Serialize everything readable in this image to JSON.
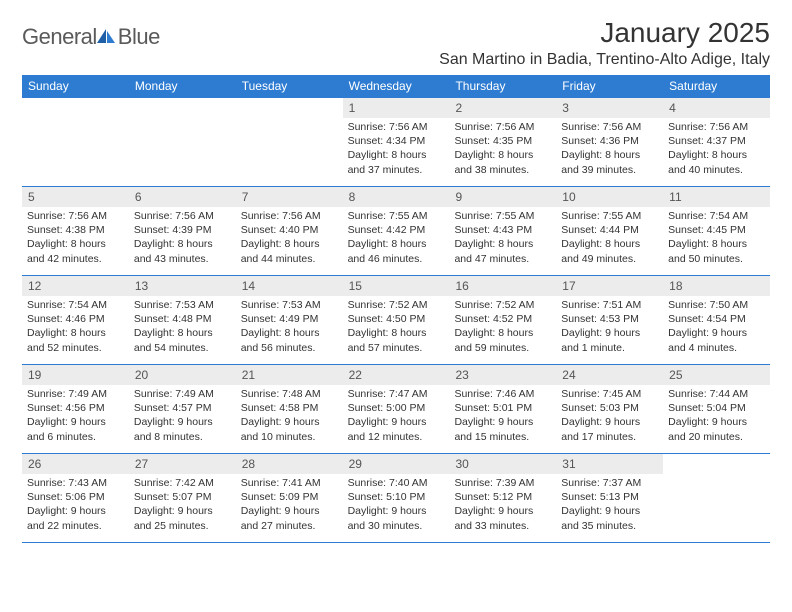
{
  "brand": {
    "name_part1": "General",
    "name_part2": "Blue"
  },
  "title": "January 2025",
  "location": "San Martino in Badia, Trentino-Alto Adige, Italy",
  "colors": {
    "header_bg": "#2e7cd1",
    "header_text": "#ffffff",
    "daynum_bg": "#ececec",
    "daynum_text": "#555555",
    "body_text": "#333333",
    "rule": "#2e7cd1",
    "page_bg": "#ffffff"
  },
  "typography": {
    "title_fontsize": 28,
    "location_fontsize": 16,
    "dow_fontsize": 12,
    "daynum_fontsize": 12,
    "body_fontsize": 10.5
  },
  "days_of_week": [
    "Sunday",
    "Monday",
    "Tuesday",
    "Wednesday",
    "Thursday",
    "Friday",
    "Saturday"
  ],
  "weeks": [
    [
      {
        "n": "",
        "sunrise": "",
        "sunset": "",
        "daylight": ""
      },
      {
        "n": "",
        "sunrise": "",
        "sunset": "",
        "daylight": ""
      },
      {
        "n": "",
        "sunrise": "",
        "sunset": "",
        "daylight": ""
      },
      {
        "n": "1",
        "sunrise": "Sunrise: 7:56 AM",
        "sunset": "Sunset: 4:34 PM",
        "daylight": "Daylight: 8 hours and 37 minutes."
      },
      {
        "n": "2",
        "sunrise": "Sunrise: 7:56 AM",
        "sunset": "Sunset: 4:35 PM",
        "daylight": "Daylight: 8 hours and 38 minutes."
      },
      {
        "n": "3",
        "sunrise": "Sunrise: 7:56 AM",
        "sunset": "Sunset: 4:36 PM",
        "daylight": "Daylight: 8 hours and 39 minutes."
      },
      {
        "n": "4",
        "sunrise": "Sunrise: 7:56 AM",
        "sunset": "Sunset: 4:37 PM",
        "daylight": "Daylight: 8 hours and 40 minutes."
      }
    ],
    [
      {
        "n": "5",
        "sunrise": "Sunrise: 7:56 AM",
        "sunset": "Sunset: 4:38 PM",
        "daylight": "Daylight: 8 hours and 42 minutes."
      },
      {
        "n": "6",
        "sunrise": "Sunrise: 7:56 AM",
        "sunset": "Sunset: 4:39 PM",
        "daylight": "Daylight: 8 hours and 43 minutes."
      },
      {
        "n": "7",
        "sunrise": "Sunrise: 7:56 AM",
        "sunset": "Sunset: 4:40 PM",
        "daylight": "Daylight: 8 hours and 44 minutes."
      },
      {
        "n": "8",
        "sunrise": "Sunrise: 7:55 AM",
        "sunset": "Sunset: 4:42 PM",
        "daylight": "Daylight: 8 hours and 46 minutes."
      },
      {
        "n": "9",
        "sunrise": "Sunrise: 7:55 AM",
        "sunset": "Sunset: 4:43 PM",
        "daylight": "Daylight: 8 hours and 47 minutes."
      },
      {
        "n": "10",
        "sunrise": "Sunrise: 7:55 AM",
        "sunset": "Sunset: 4:44 PM",
        "daylight": "Daylight: 8 hours and 49 minutes."
      },
      {
        "n": "11",
        "sunrise": "Sunrise: 7:54 AM",
        "sunset": "Sunset: 4:45 PM",
        "daylight": "Daylight: 8 hours and 50 minutes."
      }
    ],
    [
      {
        "n": "12",
        "sunrise": "Sunrise: 7:54 AM",
        "sunset": "Sunset: 4:46 PM",
        "daylight": "Daylight: 8 hours and 52 minutes."
      },
      {
        "n": "13",
        "sunrise": "Sunrise: 7:53 AM",
        "sunset": "Sunset: 4:48 PM",
        "daylight": "Daylight: 8 hours and 54 minutes."
      },
      {
        "n": "14",
        "sunrise": "Sunrise: 7:53 AM",
        "sunset": "Sunset: 4:49 PM",
        "daylight": "Daylight: 8 hours and 56 minutes."
      },
      {
        "n": "15",
        "sunrise": "Sunrise: 7:52 AM",
        "sunset": "Sunset: 4:50 PM",
        "daylight": "Daylight: 8 hours and 57 minutes."
      },
      {
        "n": "16",
        "sunrise": "Sunrise: 7:52 AM",
        "sunset": "Sunset: 4:52 PM",
        "daylight": "Daylight: 8 hours and 59 minutes."
      },
      {
        "n": "17",
        "sunrise": "Sunrise: 7:51 AM",
        "sunset": "Sunset: 4:53 PM",
        "daylight": "Daylight: 9 hours and 1 minute."
      },
      {
        "n": "18",
        "sunrise": "Sunrise: 7:50 AM",
        "sunset": "Sunset: 4:54 PM",
        "daylight": "Daylight: 9 hours and 4 minutes."
      }
    ],
    [
      {
        "n": "19",
        "sunrise": "Sunrise: 7:49 AM",
        "sunset": "Sunset: 4:56 PM",
        "daylight": "Daylight: 9 hours and 6 minutes."
      },
      {
        "n": "20",
        "sunrise": "Sunrise: 7:49 AM",
        "sunset": "Sunset: 4:57 PM",
        "daylight": "Daylight: 9 hours and 8 minutes."
      },
      {
        "n": "21",
        "sunrise": "Sunrise: 7:48 AM",
        "sunset": "Sunset: 4:58 PM",
        "daylight": "Daylight: 9 hours and 10 minutes."
      },
      {
        "n": "22",
        "sunrise": "Sunrise: 7:47 AM",
        "sunset": "Sunset: 5:00 PM",
        "daylight": "Daylight: 9 hours and 12 minutes."
      },
      {
        "n": "23",
        "sunrise": "Sunrise: 7:46 AM",
        "sunset": "Sunset: 5:01 PM",
        "daylight": "Daylight: 9 hours and 15 minutes."
      },
      {
        "n": "24",
        "sunrise": "Sunrise: 7:45 AM",
        "sunset": "Sunset: 5:03 PM",
        "daylight": "Daylight: 9 hours and 17 minutes."
      },
      {
        "n": "25",
        "sunrise": "Sunrise: 7:44 AM",
        "sunset": "Sunset: 5:04 PM",
        "daylight": "Daylight: 9 hours and 20 minutes."
      }
    ],
    [
      {
        "n": "26",
        "sunrise": "Sunrise: 7:43 AM",
        "sunset": "Sunset: 5:06 PM",
        "daylight": "Daylight: 9 hours and 22 minutes."
      },
      {
        "n": "27",
        "sunrise": "Sunrise: 7:42 AM",
        "sunset": "Sunset: 5:07 PM",
        "daylight": "Daylight: 9 hours and 25 minutes."
      },
      {
        "n": "28",
        "sunrise": "Sunrise: 7:41 AM",
        "sunset": "Sunset: 5:09 PM",
        "daylight": "Daylight: 9 hours and 27 minutes."
      },
      {
        "n": "29",
        "sunrise": "Sunrise: 7:40 AM",
        "sunset": "Sunset: 5:10 PM",
        "daylight": "Daylight: 9 hours and 30 minutes."
      },
      {
        "n": "30",
        "sunrise": "Sunrise: 7:39 AM",
        "sunset": "Sunset: 5:12 PM",
        "daylight": "Daylight: 9 hours and 33 minutes."
      },
      {
        "n": "31",
        "sunrise": "Sunrise: 7:37 AM",
        "sunset": "Sunset: 5:13 PM",
        "daylight": "Daylight: 9 hours and 35 minutes."
      },
      {
        "n": "",
        "sunrise": "",
        "sunset": "",
        "daylight": ""
      }
    ]
  ]
}
